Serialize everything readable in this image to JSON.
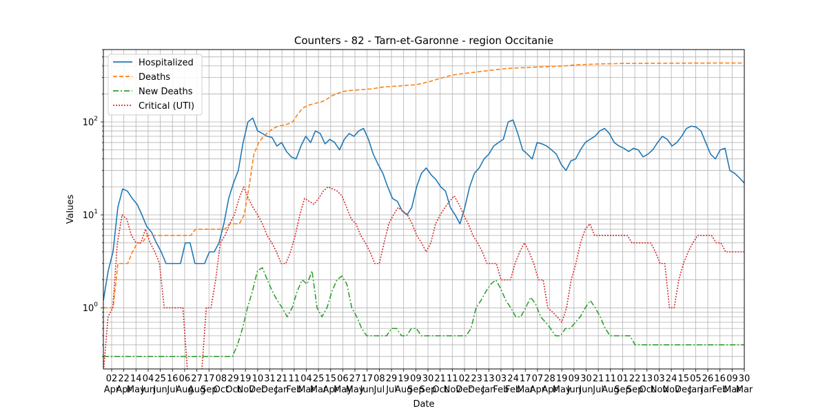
{
  "chart_data": {
    "type": "line",
    "title": "Counters - 82 - Tarn-et-Garonne - region Occitanie",
    "xlabel": "Date",
    "ylabel": "Values",
    "yscale": "log",
    "ylim": [
      0.22,
      600
    ],
    "grid": true,
    "legend_position": "upper-left",
    "y_ticks": [
      {
        "value": 1,
        "label": "10^0"
      },
      {
        "value": 10,
        "label": "10^1"
      },
      {
        "value": 100,
        "label": "10^2"
      }
    ],
    "x_tick_labels": [
      {
        "day": "02",
        "month": "Apr"
      },
      {
        "day": "22",
        "month": "Apr"
      },
      {
        "day": "14",
        "month": "May"
      },
      {
        "day": "04",
        "month": "Jun"
      },
      {
        "day": "25",
        "month": "Jun"
      },
      {
        "day": "16",
        "month": "Jul"
      },
      {
        "day": "06",
        "month": "Aug"
      },
      {
        "day": "27",
        "month": "Aug"
      },
      {
        "day": "17",
        "month": "Sep"
      },
      {
        "day": "08",
        "month": "Oct"
      },
      {
        "day": "29",
        "month": "Oct"
      },
      {
        "day": "19",
        "month": "Nov"
      },
      {
        "day": "10",
        "month": "Dec"
      },
      {
        "day": "31",
        "month": "Dec"
      },
      {
        "day": "21",
        "month": "Jan"
      },
      {
        "day": "11",
        "month": "Feb"
      },
      {
        "day": "04",
        "month": "Mar"
      },
      {
        "day": "25",
        "month": "Mar"
      },
      {
        "day": "15",
        "month": "Apr"
      },
      {
        "day": "06",
        "month": "May"
      },
      {
        "day": "27",
        "month": "May"
      },
      {
        "day": "17",
        "month": "Jun"
      },
      {
        "day": "08",
        "month": "Jul"
      },
      {
        "day": "29",
        "month": "Jul"
      },
      {
        "day": "19",
        "month": "Aug"
      },
      {
        "day": "09",
        "month": "Sep"
      },
      {
        "day": "30",
        "month": "Sep"
      },
      {
        "day": "21",
        "month": "Oct"
      },
      {
        "day": "11",
        "month": "Nov"
      },
      {
        "day": "02",
        "month": "Dec"
      },
      {
        "day": "23",
        "month": "Dec"
      },
      {
        "day": "13",
        "month": "Jan"
      },
      {
        "day": "03",
        "month": "Feb"
      },
      {
        "day": "24",
        "month": "Feb"
      },
      {
        "day": "17",
        "month": "Mar"
      },
      {
        "day": "07",
        "month": "Apr"
      },
      {
        "day": "28",
        "month": "Apr"
      },
      {
        "day": "19",
        "month": "May"
      },
      {
        "day": "09",
        "month": "Jun"
      },
      {
        "day": "30",
        "month": "Jun"
      },
      {
        "day": "21",
        "month": "Jul"
      },
      {
        "day": "11",
        "month": "Aug"
      },
      {
        "day": "01",
        "month": "Sep"
      },
      {
        "day": "22",
        "month": "Sep"
      },
      {
        "day": "13",
        "month": "Oct"
      },
      {
        "day": "03",
        "month": "Nov"
      },
      {
        "day": "24",
        "month": "Nov"
      },
      {
        "day": "15",
        "month": "Dec"
      },
      {
        "day": "05",
        "month": "Jan"
      },
      {
        "day": "26",
        "month": "Jan"
      },
      {
        "day": "16",
        "month": "Feb"
      },
      {
        "day": "09",
        "month": "Mar"
      },
      {
        "day": "30",
        "month": "Mar"
      }
    ],
    "series": [
      {
        "name": "Hospitalized",
        "color": "#1f77b4",
        "style": "solid",
        "values": [
          1.2,
          2.5,
          4,
          12,
          19,
          18,
          15,
          13,
          10,
          7.5,
          6.5,
          5,
          4,
          3,
          3,
          3,
          3,
          5,
          5,
          3,
          3,
          3,
          4,
          4,
          5,
          8,
          15,
          22,
          30,
          60,
          100,
          110,
          80,
          75,
          70,
          68,
          55,
          60,
          48,
          42,
          40,
          55,
          70,
          60,
          80,
          75,
          58,
          65,
          60,
          50,
          65,
          75,
          70,
          80,
          85,
          65,
          45,
          35,
          28,
          20,
          15,
          14,
          11,
          10,
          12,
          20,
          28,
          32,
          27,
          24,
          20,
          18,
          12,
          10,
          8,
          12,
          20,
          28,
          32,
          40,
          45,
          55,
          60,
          65,
          100,
          105,
          75,
          50,
          45,
          40,
          60,
          58,
          55,
          50,
          45,
          35,
          30,
          38,
          40,
          50,
          60,
          65,
          70,
          80,
          85,
          75,
          60,
          55,
          52,
          48,
          52,
          50,
          42,
          45,
          50,
          60,
          70,
          65,
          55,
          60,
          70,
          85,
          90,
          88,
          80,
          60,
          45,
          40,
          50,
          52,
          30,
          28,
          25,
          22
        ]
      },
      {
        "name": "Deaths",
        "color": "#ff7f0e",
        "style": "dashed",
        "values": [
          1,
          1,
          1,
          3,
          3,
          3,
          4,
          5,
          5,
          6,
          6,
          6,
          6,
          6,
          6,
          6,
          6,
          6,
          6,
          7,
          7,
          7,
          7,
          7,
          7,
          7,
          8,
          8,
          8,
          10,
          20,
          45,
          60,
          70,
          78,
          85,
          90,
          92,
          95,
          100,
          120,
          140,
          150,
          155,
          160,
          165,
          175,
          190,
          200,
          210,
          215,
          218,
          220,
          222,
          224,
          226,
          230,
          235,
          238,
          240,
          242,
          244,
          246,
          248,
          250,
          255,
          262,
          270,
          280,
          290,
          300,
          310,
          320,
          325,
          330,
          335,
          340,
          345,
          350,
          355,
          360,
          365,
          370,
          375,
          378,
          380,
          382,
          384,
          386,
          388,
          390,
          392,
          394,
          396,
          398,
          400,
          405,
          410,
          412,
          414,
          416,
          418,
          420,
          421,
          422,
          423,
          424,
          425,
          425,
          425,
          426,
          426,
          426,
          427,
          427,
          427,
          428,
          428,
          428,
          428,
          429,
          429,
          429,
          429,
          429,
          430,
          430,
          430,
          430,
          430,
          430,
          430,
          430
        ]
      },
      {
        "name": "New Deaths",
        "color": "#2ca02c",
        "style": "dashdot",
        "values": [
          0.3,
          0.3,
          0.3,
          0.3,
          0.3,
          0.3,
          0.3,
          0.3,
          0.3,
          0.3,
          0.3,
          0.3,
          0.3,
          0.3,
          0.3,
          0.3,
          0.3,
          0.3,
          0.3,
          0.3,
          0.3,
          0.3,
          0.3,
          0.3,
          0.3,
          0.3,
          0.3,
          0.4,
          0.6,
          1,
          1.5,
          2.5,
          2.7,
          2,
          1.5,
          1.2,
          1,
          0.8,
          1,
          1.5,
          2,
          1.8,
          2.5,
          1,
          0.8,
          1,
          1.5,
          2,
          2.2,
          1.8,
          1,
          0.8,
          0.6,
          0.5,
          0.5,
          0.5,
          0.5,
          0.5,
          0.6,
          0.6,
          0.5,
          0.5,
          0.6,
          0.6,
          0.5,
          0.5,
          0.5,
          0.5,
          0.5,
          0.5,
          0.5,
          0.5,
          0.5,
          0.5,
          0.6,
          1,
          1.2,
          1.5,
          1.8,
          2,
          1.6,
          1.2,
          1,
          0.8,
          0.8,
          1,
          1.3,
          1.1,
          0.8,
          0.7,
          0.6,
          0.5,
          0.5,
          0.6,
          0.6,
          0.7,
          0.8,
          1,
          1.2,
          1,
          0.8,
          0.6,
          0.5,
          0.5,
          0.5,
          0.5,
          0.5,
          0.4,
          0.4,
          0.4,
          0.4,
          0.4,
          0.4,
          0.4,
          0.4,
          0.4,
          0.4,
          0.4,
          0.4,
          0.4,
          0.4,
          0.4,
          0.4,
          0.4,
          0.4,
          0.4,
          0.4,
          0.4,
          0.4,
          0.4
        ]
      },
      {
        "name": "Critical (UTI)",
        "color": "#d62728",
        "style": "dotted",
        "values": [
          0.2,
          0.8,
          1,
          5,
          10,
          9,
          6,
          5,
          5,
          7,
          5,
          4,
          3,
          1,
          1,
          1,
          1,
          1,
          0.2,
          0.2,
          0.2,
          0.2,
          1,
          1,
          2,
          5,
          6,
          8,
          10,
          15,
          20,
          15,
          12,
          10,
          8,
          6,
          5,
          4,
          3,
          3,
          4,
          6,
          10,
          15,
          14,
          13,
          15,
          18,
          20,
          19,
          18,
          16,
          12,
          9,
          8,
          6,
          5,
          4,
          3,
          3,
          5,
          8,
          10,
          12,
          11,
          10,
          8,
          6,
          5,
          4,
          5,
          8,
          10,
          12,
          14,
          16,
          13,
          10,
          8,
          6,
          5,
          4,
          3,
          3,
          3,
          2,
          2,
          2,
          3,
          4,
          5,
          4,
          3,
          2,
          2,
          1,
          0.9,
          0.8,
          0.7,
          1,
          2,
          3,
          5,
          7,
          8,
          6,
          6,
          6,
          6,
          6,
          6,
          6,
          6,
          5,
          5,
          5,
          5,
          5,
          4,
          3,
          3,
          1,
          1,
          2,
          3,
          4,
          5,
          6,
          6,
          6,
          6,
          5,
          5,
          4,
          4,
          4,
          4,
          4
        ]
      }
    ]
  }
}
